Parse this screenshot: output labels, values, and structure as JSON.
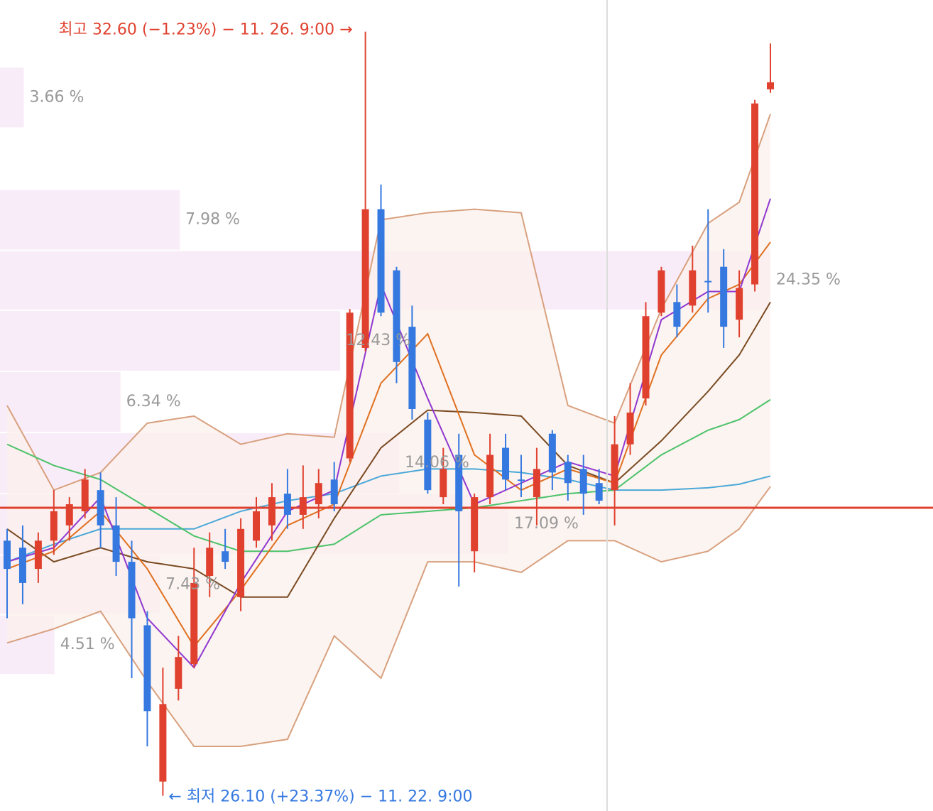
{
  "chart_data": {
    "type": "candlestick",
    "ylim": [
      25.97,
      32.87
    ],
    "up_color": "#e0412f",
    "down_color": "#3478e0",
    "candles": {
      "open": [
        28.27,
        28.21,
        28.03,
        28.27,
        28.4,
        28.52,
        28.7,
        28.4,
        28.09,
        27.55,
        26.22,
        27.01,
        27.22,
        27.97,
        28.18,
        27.79,
        28.27,
        28.4,
        28.67,
        28.49,
        28.58,
        28.79,
        28.97,
        29.91,
        31.09,
        30.57,
        30.09,
        29.3,
        28.64,
        29.0,
        28.18,
        28.64,
        29.06,
        28.79,
        28.64,
        29.18,
        28.94,
        28.88,
        28.76,
        28.7,
        29.09,
        29.48,
        30.21,
        30.3,
        30.27,
        30.48,
        30.6,
        30.15,
        30.45,
        32.11
      ],
      "high": [
        28.37,
        28.4,
        28.34,
        28.7,
        28.64,
        28.88,
        28.85,
        28.64,
        28.27,
        27.67,
        27.19,
        27.46,
        28.21,
        28.34,
        28.37,
        28.46,
        28.64,
        28.76,
        28.88,
        28.91,
        28.88,
        28.94,
        30.24,
        32.6,
        31.3,
        30.6,
        30.27,
        29.36,
        29.06,
        29.18,
        28.67,
        29.18,
        29.18,
        29.0,
        29.06,
        29.21,
        29.0,
        29.0,
        28.88,
        29.33,
        29.61,
        30.3,
        30.6,
        30.45,
        30.78,
        31.09,
        30.75,
        30.57,
        32.02,
        32.5
      ],
      "low": [
        27.61,
        27.73,
        27.91,
        28.15,
        28.27,
        28.46,
        28.21,
        27.97,
        27.1,
        26.52,
        26.1,
        26.91,
        27.19,
        27.79,
        28.03,
        27.67,
        28.21,
        28.27,
        28.37,
        28.37,
        28.46,
        28.52,
        28.94,
        29.88,
        30.18,
        29.61,
        29.3,
        28.67,
        28.58,
        27.88,
        28.0,
        28.58,
        28.7,
        28.64,
        28.4,
        28.7,
        28.61,
        28.49,
        28.58,
        28.4,
        29.0,
        29.42,
        30.18,
        30.0,
        30.21,
        30.21,
        29.91,
        30.0,
        30.39,
        32.08
      ],
      "close": [
        28.03,
        27.91,
        28.27,
        28.52,
        28.58,
        28.79,
        28.4,
        28.09,
        27.61,
        26.82,
        26.88,
        27.28,
        27.91,
        28.21,
        28.09,
        28.37,
        28.52,
        28.64,
        28.49,
        28.64,
        28.76,
        28.58,
        30.21,
        31.09,
        30.21,
        29.79,
        29.39,
        28.7,
        28.88,
        28.52,
        28.64,
        29.0,
        28.79,
        28.78,
        28.88,
        28.85,
        28.76,
        28.67,
        28.61,
        29.09,
        29.36,
        30.18,
        30.57,
        30.09,
        30.57,
        30.47,
        30.09,
        30.42,
        31.99,
        32.17
      ]
    },
    "overlays": {
      "x": [
        0,
        3,
        6,
        9,
        12,
        15,
        18,
        21,
        24,
        27,
        30,
        33,
        36,
        39,
        42,
        45,
        47,
        49
      ],
      "band_color": "#fbf1ec",
      "series": [
        {
          "color": "#d8a07e",
          "values": [
            29.42,
            28.7,
            28.85,
            29.27,
            29.33,
            29.09,
            29.18,
            29.15,
            31.0,
            31.06,
            31.09,
            31.06,
            29.42,
            29.27,
            30.24,
            30.97,
            31.15,
            31.9
          ]
        },
        {
          "color": "#d8a07e",
          "values": [
            27.4,
            27.52,
            27.67,
            27.07,
            26.52,
            26.52,
            26.58,
            27.46,
            27.1,
            28.09,
            28.09,
            28.0,
            28.27,
            28.27,
            28.09,
            28.18,
            28.37,
            28.73
          ]
        },
        {
          "color": "#4aa8d8",
          "values": [
            28.09,
            28.24,
            28.37,
            28.37,
            28.37,
            28.52,
            28.61,
            28.67,
            28.82,
            28.88,
            28.88,
            28.85,
            28.79,
            28.7,
            28.7,
            28.72,
            28.75,
            28.82
          ]
        },
        {
          "color": "#4cc26a",
          "values": [
            29.09,
            28.91,
            28.79,
            28.55,
            28.31,
            28.18,
            28.18,
            28.24,
            28.49,
            28.52,
            28.55,
            28.61,
            28.67,
            28.7,
            29.0,
            29.21,
            29.3,
            29.47
          ]
        },
        {
          "color": "#7a4a22",
          "values": [
            28.37,
            28.09,
            28.21,
            28.09,
            28.03,
            27.79,
            27.79,
            28.46,
            29.06,
            29.38,
            29.36,
            29.33,
            28.91,
            28.76,
            29.12,
            29.54,
            29.85,
            30.3
          ]
        },
        {
          "color": "#e07020",
          "values": [
            28.03,
            28.18,
            28.52,
            28.03,
            27.37,
            27.85,
            28.4,
            28.58,
            29.61,
            30.03,
            29.0,
            28.7,
            28.88,
            28.76,
            29.85,
            30.33,
            30.45,
            30.81
          ]
        },
        {
          "color": "#9038d0",
          "values": [
            28.09,
            28.21,
            28.64,
            27.61,
            27.19,
            27.91,
            28.52,
            28.7,
            30.45,
            29.48,
            28.58,
            28.76,
            28.94,
            28.82,
            30.15,
            30.39,
            30.39,
            31.18
          ]
        }
      ]
    },
    "profile": {
      "color": "#f7e6f7",
      "bins": [
        32.3,
        31.78,
        31.26,
        30.74,
        30.23,
        29.71,
        29.19,
        28.67,
        28.15,
        27.64,
        27.13
      ],
      "values": [
        3.66,
        null,
        7.98,
        24.35,
        12.43,
        6.34,
        14.06,
        17.09,
        7.43,
        4.51
      ],
      "value_labels": [
        "3.66 %",
        null,
        "7.98 %",
        "24.35 %",
        "12.43 %",
        "6.34 %",
        "14.06 %",
        "17.09 %",
        "7.43 %",
        "4.51 %"
      ],
      "xlim": [
        3.0,
        24.35
      ]
    },
    "current_price": 28.55,
    "current_color": "#e0412f",
    "high_label": "최고 32.60 (−1.23%) − 11. 26. 9:00 →",
    "low_label": "← 최저 26.10 (+23.37%) − 11. 22. 9:00"
  }
}
